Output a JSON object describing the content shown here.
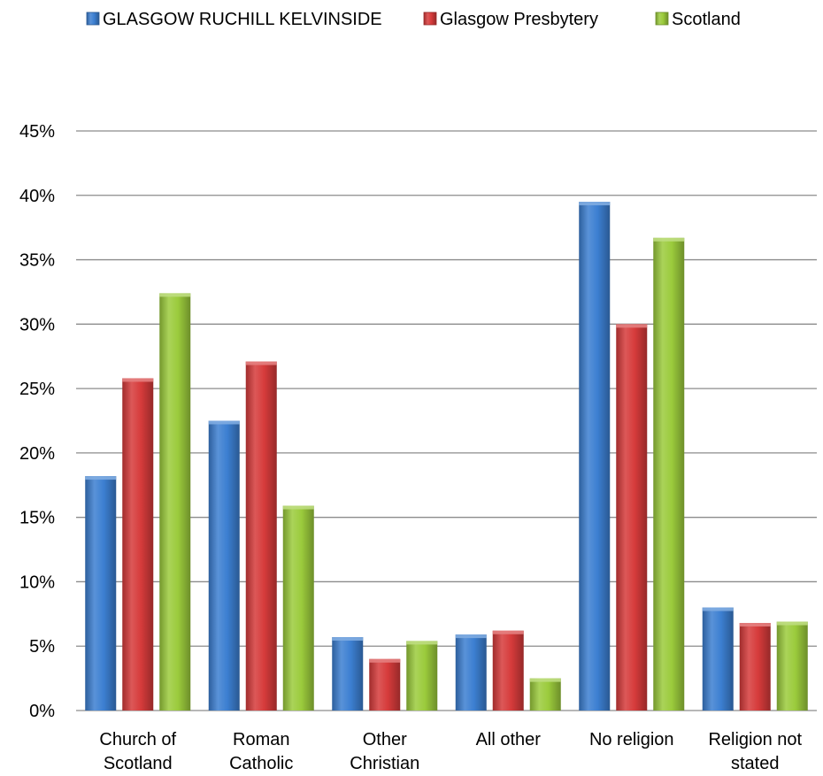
{
  "chart_data": {
    "type": "bar",
    "categories": [
      [
        "Church of",
        "Scotland"
      ],
      [
        "Roman",
        "Catholic"
      ],
      [
        "Other",
        "Christian"
      ],
      [
        "All other"
      ],
      [
        "No religion"
      ],
      [
        "Religion not",
        "stated"
      ]
    ],
    "series": [
      {
        "name": "GLASGOW RUCHILL KELVINSIDE",
        "color": "#3c7fd1",
        "values": [
          18.2,
          22.5,
          5.7,
          5.9,
          39.5,
          8.0
        ]
      },
      {
        "name": "Glasgow Presbytery",
        "color": "#d63b3b",
        "values": [
          25.8,
          27.1,
          4.0,
          6.2,
          30.0,
          6.8
        ]
      },
      {
        "name": "Scotland",
        "color": "#9bcb3c",
        "values": [
          32.4,
          15.9,
          5.4,
          2.5,
          36.7,
          6.9
        ]
      }
    ],
    "ylim": [
      0,
      45
    ],
    "yticks": [
      "0%",
      "5%",
      "10%",
      "15%",
      "20%",
      "25%",
      "30%",
      "35%",
      "40%",
      "45%"
    ],
    "ytick_values": [
      0,
      5,
      10,
      15,
      20,
      25,
      30,
      35,
      40,
      45
    ],
    "grid": true,
    "legend_position": "top"
  }
}
